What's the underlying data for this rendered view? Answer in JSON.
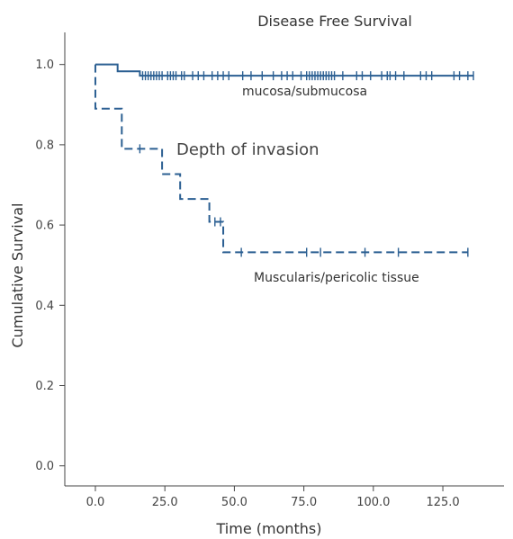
{
  "chart_data": {
    "type": "line",
    "subtype": "kaplan-meier step",
    "title": "Disease Free Survival",
    "xlabel": "Time (months)",
    "ylabel": "Cumulative Survival",
    "annotation": "Depth of invasion",
    "xlim": [
      -11,
      147
    ],
    "ylim": [
      -0.05,
      1.08
    ],
    "x_ticks": [
      0,
      25,
      50,
      75,
      100,
      125
    ],
    "x_tick_labels": [
      "0.0",
      "25.0",
      "50.0",
      "75.0",
      "100.0",
      "125.0"
    ],
    "y_ticks": [
      0,
      0.2,
      0.4,
      0.6,
      0.8,
      1.0
    ],
    "y_tick_labels": [
      "0.0",
      "0.2",
      "0.4",
      "0.6",
      "0.8",
      "1.0"
    ],
    "grid": false,
    "colors": {
      "series": "#2b5f92",
      "axis": "#444444",
      "text": "#333333"
    },
    "series": [
      {
        "name": "mucosa/submucosa",
        "line_style": "solid",
        "steps": [
          [
            0,
            1.0
          ],
          [
            8,
            1.0
          ],
          [
            8,
            0.983
          ],
          [
            16,
            0.983
          ],
          [
            16,
            0.972
          ],
          [
            136,
            0.972
          ]
        ],
        "censored": [
          17,
          18,
          19,
          20,
          21,
          22,
          23,
          24,
          26,
          27,
          28,
          29,
          31,
          32,
          35,
          37,
          39,
          42,
          44,
          46,
          48,
          53,
          56,
          60,
          64,
          67,
          69,
          71,
          74,
          76,
          77,
          78,
          79,
          80,
          81,
          82,
          83,
          84,
          85,
          86,
          89,
          94,
          96,
          99,
          103,
          105,
          106,
          108,
          111,
          117,
          119,
          121,
          129,
          131,
          134,
          136
        ]
      },
      {
        "name": "Muscularis/pericolic tissue",
        "line_style": "dashed",
        "steps": [
          [
            0,
            1.0
          ],
          [
            0,
            0.89
          ],
          [
            9.5,
            0.89
          ],
          [
            9.5,
            0.79
          ],
          [
            24,
            0.79
          ],
          [
            24,
            0.727
          ],
          [
            30.5,
            0.727
          ],
          [
            30.5,
            0.665
          ],
          [
            41,
            0.665
          ],
          [
            41,
            0.608
          ],
          [
            46,
            0.608
          ],
          [
            46,
            0.532
          ],
          [
            134,
            0.532
          ]
        ],
        "censored": [
          16,
          43,
          45,
          52.5,
          76,
          81,
          97,
          109,
          134
        ]
      }
    ]
  }
}
